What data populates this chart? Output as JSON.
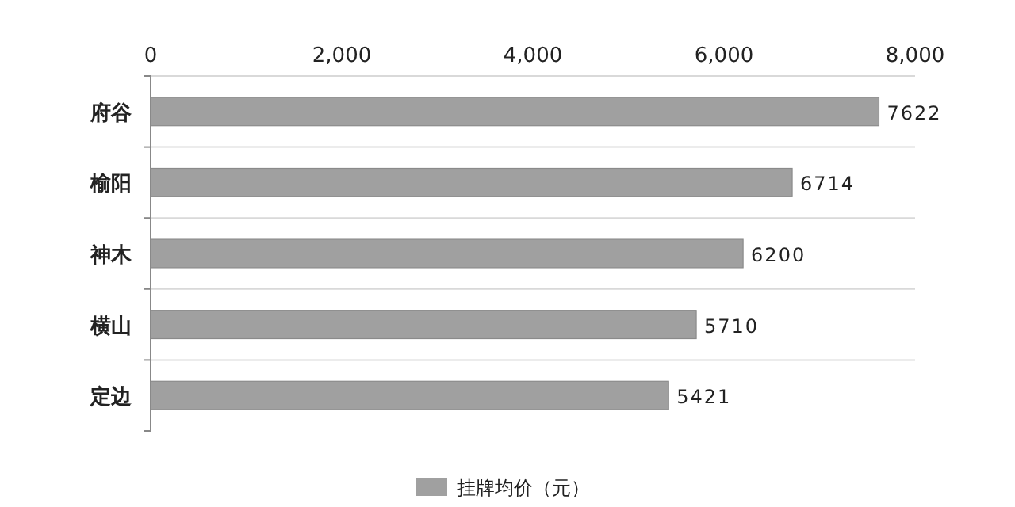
{
  "chart_data": {
    "type": "bar",
    "orientation": "horizontal",
    "categories": [
      "府谷",
      "榆阳",
      "神木",
      "横山",
      "定边"
    ],
    "series": [
      {
        "name": "挂牌均价（元）",
        "color": "#a0a0a0",
        "values": [
          7622,
          6714,
          6200,
          5710,
          5421
        ]
      }
    ],
    "xlim": [
      0,
      8000
    ],
    "xticks": [
      0,
      {
        "value": 2000,
        "label": "2,000"
      },
      {
        "value": 4000,
        "label": "4,000"
      },
      {
        "value": 6000,
        "label": "6,000"
      },
      {
        "value": 8000,
        "label": "8,000"
      }
    ],
    "grid": "y",
    "legend": "bottom",
    "data_labels": true
  }
}
